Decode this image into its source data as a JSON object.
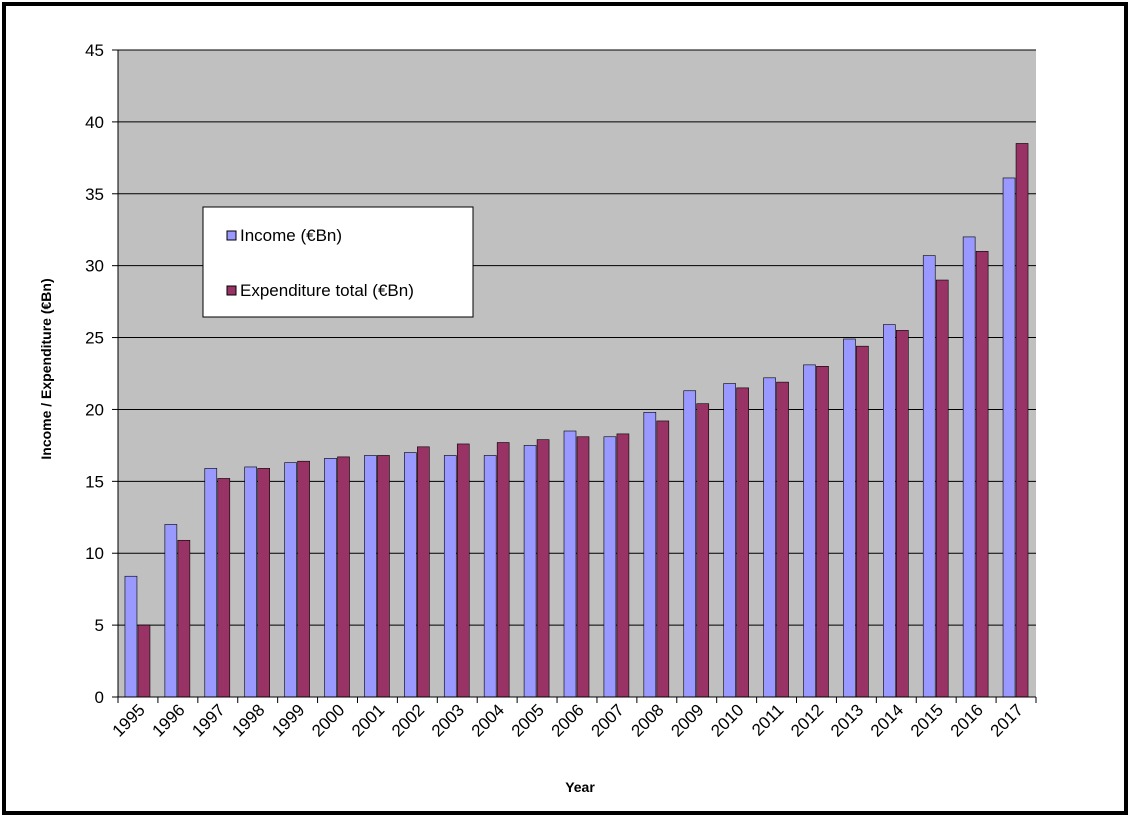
{
  "chart_data": {
    "type": "bar",
    "title": "",
    "xlabel": "Year",
    "ylabel": "Income / Expenditure (€Bn)",
    "ylim": [
      0,
      45
    ],
    "yticks": [
      "0",
      "5",
      "10",
      "15",
      "20",
      "25",
      "30",
      "35",
      "40",
      "45"
    ],
    "grid": true,
    "legend_position": "upper-left",
    "plot_background": "#c0c0c0",
    "categories": [
      "1995",
      "1996",
      "1997",
      "1998",
      "1999",
      "2000",
      "2001",
      "2002",
      "2003",
      "2004",
      "2005",
      "2006",
      "2007",
      "2008",
      "2009",
      "2010",
      "2011",
      "2012",
      "2013",
      "2014",
      "2015",
      "2016",
      "2017"
    ],
    "series": [
      {
        "name": "Income (€Bn)",
        "color": "#9999ff",
        "values": [
          8.4,
          12.0,
          15.9,
          16.0,
          16.3,
          16.6,
          16.8,
          17.0,
          16.8,
          16.8,
          17.5,
          18.5,
          18.1,
          19.8,
          21.3,
          21.8,
          22.2,
          23.1,
          24.9,
          25.9,
          30.7,
          32.0,
          36.1
        ]
      },
      {
        "name": "Expenditure total (€Bn)",
        "color": "#993366",
        "values": [
          5.0,
          10.9,
          15.2,
          15.9,
          16.4,
          16.7,
          16.8,
          17.4,
          17.6,
          17.7,
          17.9,
          18.1,
          18.3,
          19.2,
          20.4,
          21.5,
          21.9,
          23.0,
          24.4,
          25.5,
          29.0,
          31.0,
          38.5
        ]
      }
    ]
  }
}
